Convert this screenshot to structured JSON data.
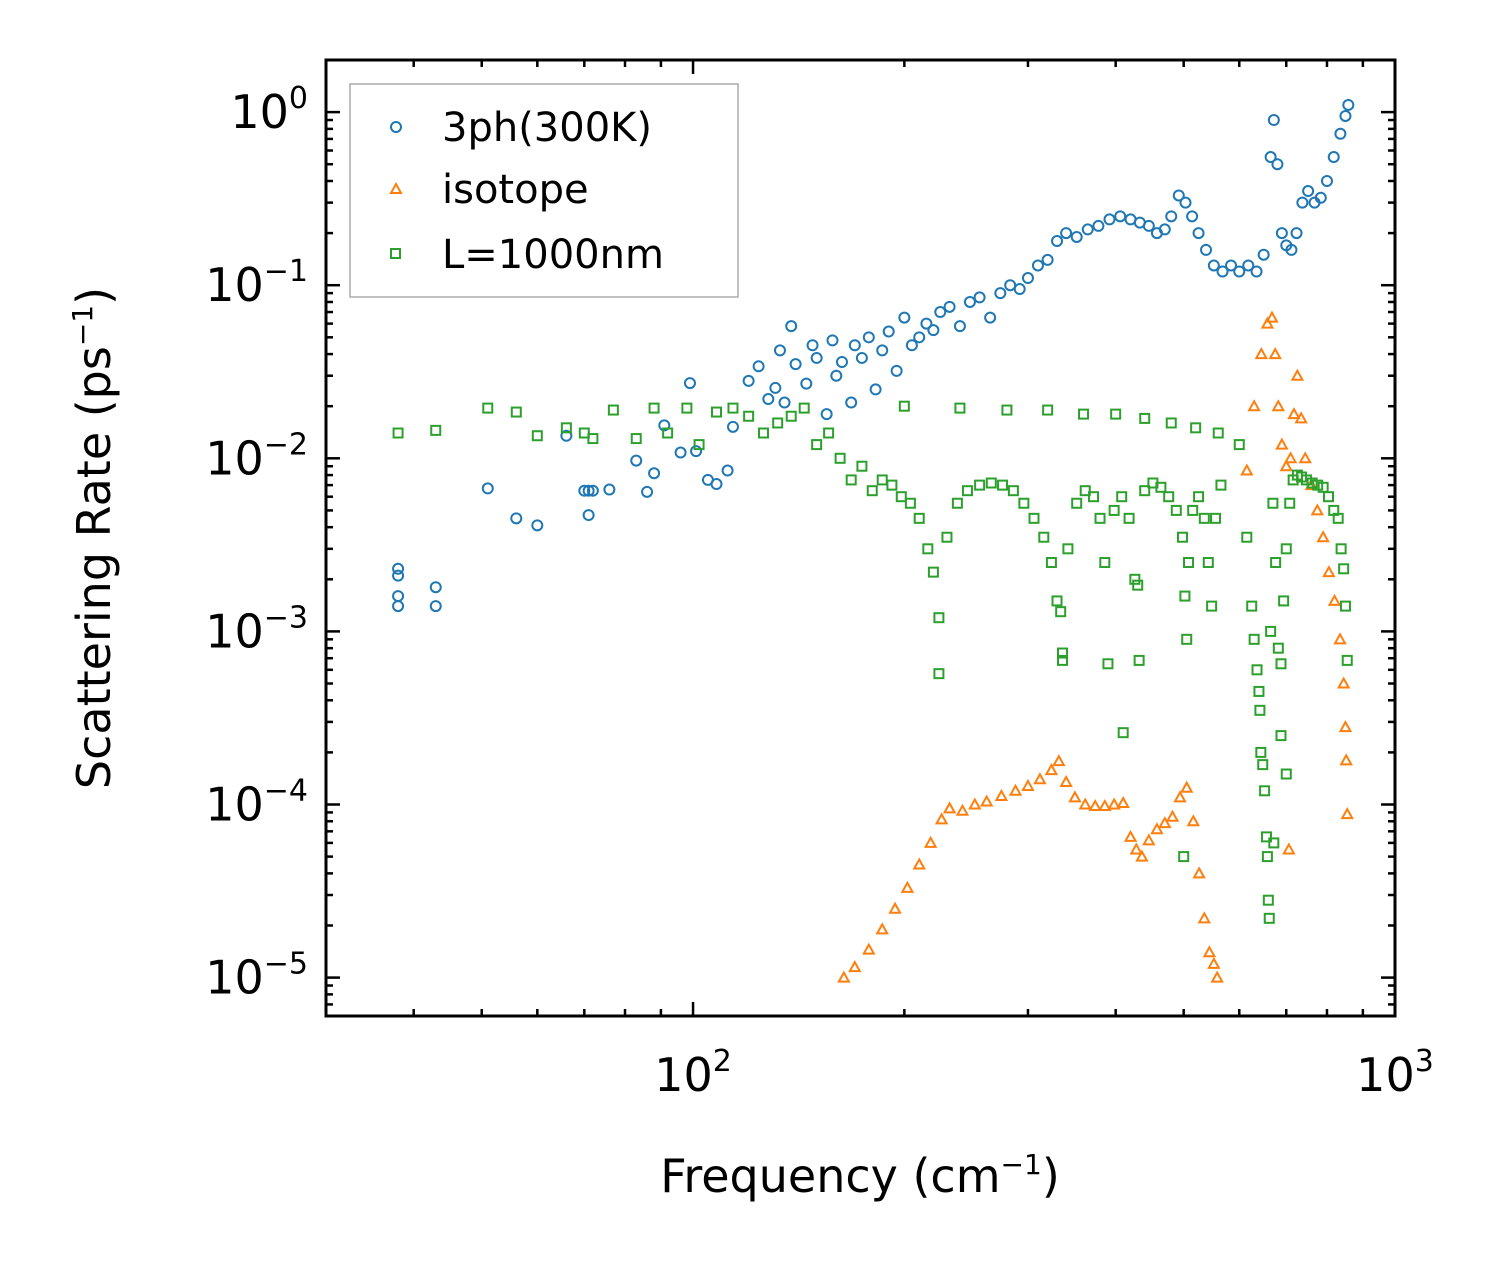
{
  "chart_data": {
    "type": "scatter",
    "title": "",
    "xlabel": {
      "base": "Frequency (cm",
      "sup": "−1",
      "close": ")"
    },
    "ylabel": {
      "base": "Scattering Rate (ps",
      "sup": "−1",
      "close": ")"
    },
    "x_scale": "log",
    "y_scale": "log",
    "xlim": [
      30,
      1000
    ],
    "ylim": [
      6e-06,
      2.0
    ],
    "x_ticks": [
      {
        "value": 100,
        "base": "10",
        "exp": "2"
      },
      {
        "value": 1000,
        "base": "10",
        "exp": "3"
      }
    ],
    "y_ticks": [
      {
        "value": 1,
        "base": "10",
        "exp": "0"
      },
      {
        "value": 0.1,
        "base": "10",
        "exp": "−1"
      },
      {
        "value": 0.01,
        "base": "10",
        "exp": "−2"
      },
      {
        "value": 0.001,
        "base": "10",
        "exp": "−3"
      },
      {
        "value": 0.0001,
        "base": "10",
        "exp": "−4"
      },
      {
        "value": 1e-05,
        "base": "10",
        "exp": "−5"
      }
    ],
    "legend_position": "top-left",
    "series": [
      {
        "name": "3ph(300K)",
        "marker": "circle",
        "color": "#1f77b4",
        "points": [
          [
            38,
            0.0023
          ],
          [
            38,
            0.0021
          ],
          [
            38,
            0.0016
          ],
          [
            38,
            0.0014
          ],
          [
            43,
            0.0018
          ],
          [
            43,
            0.0014
          ],
          [
            51,
            0.0067
          ],
          [
            56,
            0.0045
          ],
          [
            60,
            0.0041
          ],
          [
            66,
            0.0135
          ],
          [
            70,
            0.0065
          ],
          [
            71,
            0.0065
          ],
          [
            71,
            0.0047
          ],
          [
            72,
            0.0065
          ],
          [
            76,
            0.0066
          ],
          [
            83,
            0.0097
          ],
          [
            86,
            0.0064
          ],
          [
            88,
            0.0082
          ],
          [
            91,
            0.0155
          ],
          [
            96,
            0.0108
          ],
          [
            99,
            0.0272
          ],
          [
            101,
            0.011
          ],
          [
            105,
            0.0075
          ],
          [
            108,
            0.0071
          ],
          [
            112,
            0.0085
          ],
          [
            114,
            0.0152
          ],
          [
            120,
            0.028
          ],
          [
            124,
            0.034
          ],
          [
            128,
            0.022
          ],
          [
            131,
            0.0255
          ],
          [
            133,
            0.042
          ],
          [
            135,
            0.021
          ],
          [
            138,
            0.058
          ],
          [
            140,
            0.035
          ],
          [
            145,
            0.027
          ],
          [
            148,
            0.045
          ],
          [
            150,
            0.038
          ],
          [
            155,
            0.018
          ],
          [
            158,
            0.048
          ],
          [
            160,
            0.03
          ],
          [
            163,
            0.036
          ],
          [
            168,
            0.021
          ],
          [
            170,
            0.045
          ],
          [
            174,
            0.038
          ],
          [
            178,
            0.05
          ],
          [
            182,
            0.025
          ],
          [
            186,
            0.042
          ],
          [
            190,
            0.054
          ],
          [
            195,
            0.032
          ],
          [
            200,
            0.065
          ],
          [
            205,
            0.045
          ],
          [
            210,
            0.05
          ],
          [
            215,
            0.06
          ],
          [
            220,
            0.055
          ],
          [
            225,
            0.07
          ],
          [
            232,
            0.075
          ],
          [
            240,
            0.058
          ],
          [
            248,
            0.08
          ],
          [
            256,
            0.085
          ],
          [
            265,
            0.065
          ],
          [
            274,
            0.09
          ],
          [
            283,
            0.1
          ],
          [
            292,
            0.095
          ],
          [
            300,
            0.11
          ],
          [
            310,
            0.13
          ],
          [
            320,
            0.14
          ],
          [
            330,
            0.18
          ],
          [
            340,
            0.2
          ],
          [
            352,
            0.19
          ],
          [
            365,
            0.21
          ],
          [
            378,
            0.22
          ],
          [
            392,
            0.24
          ],
          [
            406,
            0.25
          ],
          [
            420,
            0.24
          ],
          [
            433,
            0.23
          ],
          [
            446,
            0.22
          ],
          [
            458,
            0.2
          ],
          [
            470,
            0.21
          ],
          [
            480,
            0.25
          ],
          [
            492,
            0.33
          ],
          [
            503,
            0.3
          ],
          [
            514,
            0.25
          ],
          [
            525,
            0.2
          ],
          [
            538,
            0.16
          ],
          [
            552,
            0.13
          ],
          [
            568,
            0.12
          ],
          [
            584,
            0.13
          ],
          [
            600,
            0.12
          ],
          [
            618,
            0.13
          ],
          [
            635,
            0.12
          ],
          [
            650,
            0.15
          ],
          [
            665,
            0.55
          ],
          [
            672,
            0.9
          ],
          [
            680,
            0.5
          ],
          [
            690,
            0.2
          ],
          [
            700,
            0.17
          ],
          [
            712,
            0.16
          ],
          [
            724,
            0.2
          ],
          [
            738,
            0.3
          ],
          [
            752,
            0.35
          ],
          [
            768,
            0.3
          ],
          [
            784,
            0.32
          ],
          [
            800,
            0.4
          ],
          [
            818,
            0.55
          ],
          [
            836,
            0.75
          ],
          [
            850,
            0.95
          ],
          [
            858,
            1.1
          ]
        ]
      },
      {
        "name": "isotope",
        "marker": "triangle",
        "color": "#ff7f0e",
        "points": [
          [
            164,
            1e-05
          ],
          [
            170,
            1.15e-05
          ],
          [
            178,
            1.45e-05
          ],
          [
            186,
            1.9e-05
          ],
          [
            194,
            2.5e-05
          ],
          [
            202,
            3.3e-05
          ],
          [
            210,
            4.5e-05
          ],
          [
            218,
            6e-05
          ],
          [
            226,
            8.2e-05
          ],
          [
            232,
            9.5e-05
          ],
          [
            242,
            9.2e-05
          ],
          [
            252,
            0.0001
          ],
          [
            262,
            0.000104
          ],
          [
            275,
            0.000112
          ],
          [
            288,
            0.00012
          ],
          [
            300,
            0.000128
          ],
          [
            312,
            0.00014
          ],
          [
            324,
            0.000158
          ],
          [
            332,
            0.000178
          ],
          [
            340,
            0.000135
          ],
          [
            350,
            0.00011
          ],
          [
            362,
            0.0001
          ],
          [
            374,
            9.8e-05
          ],
          [
            386,
            9.8e-05
          ],
          [
            398,
            0.0001
          ],
          [
            410,
            0.000102
          ],
          [
            420,
            6.5e-05
          ],
          [
            428,
            5.5e-05
          ],
          [
            436,
            5e-05
          ],
          [
            446,
            6.2e-05
          ],
          [
            458,
            7.2e-05
          ],
          [
            470,
            7.8e-05
          ],
          [
            482,
            8.5e-05
          ],
          [
            494,
            0.00011
          ],
          [
            505,
            0.000125
          ],
          [
            516,
            8e-05
          ],
          [
            526,
            4e-05
          ],
          [
            535,
            2.2e-05
          ],
          [
            544,
            1.4e-05
          ],
          [
            552,
            1.2e-05
          ],
          [
            558,
            1e-05
          ],
          [
            615,
            0.0085
          ],
          [
            630,
            0.02
          ],
          [
            645,
            0.04
          ],
          [
            658,
            0.06
          ],
          [
            668,
            0.065
          ],
          [
            675,
            0.04
          ],
          [
            682,
            0.02
          ],
          [
            690,
            0.012
          ],
          [
            700,
            0.009
          ],
          [
            710,
            0.01
          ],
          [
            718,
            0.018
          ],
          [
            726,
            0.03
          ],
          [
            735,
            0.017
          ],
          [
            745,
            0.01
          ],
          [
            760,
            0.007
          ],
          [
            775,
            0.005
          ],
          [
            790,
            0.0035
          ],
          [
            805,
            0.0022
          ],
          [
            820,
            0.0015
          ],
          [
            835,
            0.0009
          ],
          [
            845,
            0.0005
          ],
          [
            850,
            0.00028
          ],
          [
            852,
            0.00018
          ],
          [
            855,
            8.8e-05
          ],
          [
            706,
            5.5e-05
          ]
        ]
      },
      {
        "name": "L=1000nm",
        "marker": "square",
        "color": "#2ca02c",
        "points": [
          [
            38,
            0.014
          ],
          [
            43,
            0.0145
          ],
          [
            51,
            0.0195
          ],
          [
            56,
            0.0185
          ],
          [
            60,
            0.0135
          ],
          [
            66,
            0.015
          ],
          [
            70,
            0.014
          ],
          [
            72,
            0.013
          ],
          [
            77,
            0.019
          ],
          [
            83,
            0.013
          ],
          [
            88,
            0.0195
          ],
          [
            92,
            0.014
          ],
          [
            98,
            0.0195
          ],
          [
            102,
            0.012
          ],
          [
            108,
            0.0185
          ],
          [
            114,
            0.0195
          ],
          [
            120,
            0.0175
          ],
          [
            126,
            0.014
          ],
          [
            132,
            0.016
          ],
          [
            138,
            0.0175
          ],
          [
            144,
            0.0195
          ],
          [
            150,
            0.012
          ],
          [
            156,
            0.014
          ],
          [
            162,
            0.01
          ],
          [
            168,
            0.0075
          ],
          [
            174,
            0.009
          ],
          [
            180,
            0.0065
          ],
          [
            186,
            0.0075
          ],
          [
            192,
            0.007
          ],
          [
            198,
            0.006
          ],
          [
            204,
            0.0055
          ],
          [
            210,
            0.0045
          ],
          [
            216,
            0.003
          ],
          [
            220,
            0.0022
          ],
          [
            224,
            0.0012
          ],
          [
            224,
            0.00057
          ],
          [
            230,
            0.0035
          ],
          [
            238,
            0.0055
          ],
          [
            246,
            0.0065
          ],
          [
            256,
            0.007
          ],
          [
            266,
            0.0072
          ],
          [
            276,
            0.007
          ],
          [
            286,
            0.0065
          ],
          [
            296,
            0.0055
          ],
          [
            306,
            0.0045
          ],
          [
            316,
            0.0035
          ],
          [
            324,
            0.0025
          ],
          [
            330,
            0.0015
          ],
          [
            334,
            0.0013
          ],
          [
            336,
            0.00075
          ],
          [
            336,
            0.00068
          ],
          [
            342,
            0.003
          ],
          [
            352,
            0.0055
          ],
          [
            362,
            0.0065
          ],
          [
            372,
            0.006
          ],
          [
            380,
            0.0045
          ],
          [
            386,
            0.0025
          ],
          [
            390,
            0.00065
          ],
          [
            398,
            0.005
          ],
          [
            408,
            0.006
          ],
          [
            418,
            0.0045
          ],
          [
            426,
            0.002
          ],
          [
            430,
            0.00185
          ],
          [
            432,
            0.00068
          ],
          [
            410,
            0.00026
          ],
          [
            440,
            0.0065
          ],
          [
            452,
            0.0072
          ],
          [
            464,
            0.0068
          ],
          [
            476,
            0.006
          ],
          [
            488,
            0.005
          ],
          [
            498,
            0.0035
          ],
          [
            502,
            0.0016
          ],
          [
            505,
            0.0009
          ],
          [
            508,
            0.0025
          ],
          [
            515,
            0.005
          ],
          [
            525,
            0.006
          ],
          [
            535,
            0.0045
          ],
          [
            542,
            0.0025
          ],
          [
            548,
            0.0014
          ],
          [
            555,
            0.0045
          ],
          [
            565,
            0.007
          ],
          [
            500,
            5e-05
          ],
          [
            200,
            0.02
          ],
          [
            240,
            0.0195
          ],
          [
            280,
            0.019
          ],
          [
            320,
            0.019
          ],
          [
            360,
            0.018
          ],
          [
            400,
            0.018
          ],
          [
            440,
            0.017
          ],
          [
            480,
            0.016
          ],
          [
            520,
            0.015
          ],
          [
            560,
            0.014
          ],
          [
            600,
            0.012
          ],
          [
            615,
            0.0035
          ],
          [
            625,
            0.0014
          ],
          [
            630,
            0.0009
          ],
          [
            636,
            0.0006
          ],
          [
            640,
            0.00045
          ],
          [
            642,
            0.00035
          ],
          [
            644,
            0.0002
          ],
          [
            648,
            0.00017
          ],
          [
            652,
            0.00012
          ],
          [
            656,
            6.5e-05
          ],
          [
            658,
            5e-05
          ],
          [
            660,
            2.8e-05
          ],
          [
            662,
            2.2e-05
          ],
          [
            665,
            0.001
          ],
          [
            670,
            0.0055
          ],
          [
            676,
            0.0025
          ],
          [
            682,
            0.0008
          ],
          [
            688,
            0.00065
          ],
          [
            694,
            0.0015
          ],
          [
            700,
            0.003
          ],
          [
            708,
            0.0055
          ],
          [
            716,
            0.0075
          ],
          [
            726,
            0.008
          ],
          [
            736,
            0.0078
          ],
          [
            748,
            0.0075
          ],
          [
            762,
            0.0072
          ],
          [
            776,
            0.007
          ],
          [
            790,
            0.0068
          ],
          [
            804,
            0.006
          ],
          [
            818,
            0.005
          ],
          [
            830,
            0.0045
          ],
          [
            838,
            0.003
          ],
          [
            845,
            0.0023
          ],
          [
            850,
            0.0014
          ],
          [
            855,
            0.00068
          ],
          [
            672,
            6e-05
          ],
          [
            688,
            0.00025
          ],
          [
            700,
            0.00015
          ]
        ]
      }
    ]
  }
}
